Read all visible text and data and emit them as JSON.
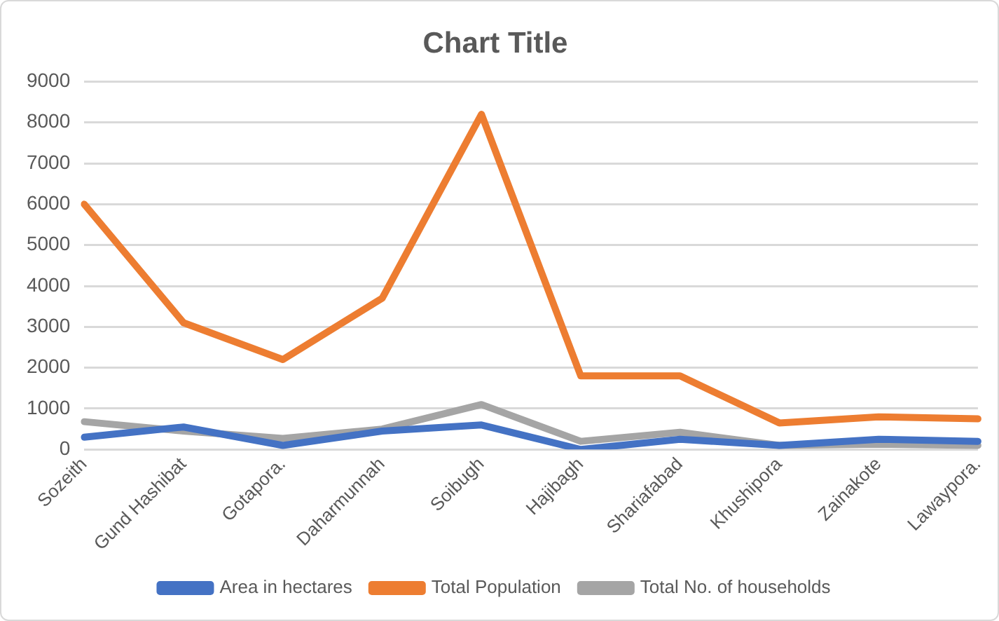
{
  "chart_data": {
    "type": "line",
    "title": "Chart Title",
    "categories": [
      "Sozeith",
      "Gund Hashibat",
      "Gotapora.",
      "Daharmunnah",
      "Soibugh",
      "Hajibagh",
      "Shariafabad",
      "Khushipora",
      "Zainakote",
      "Lawaypora."
    ],
    "series": [
      {
        "name": "Area in hectares",
        "color": "#4472c4",
        "values": [
          300,
          550,
          100,
          450,
          600,
          0,
          250,
          100,
          250,
          200
        ]
      },
      {
        "name": "Total Population",
        "color": "#ed7d31",
        "values": [
          6000,
          3100,
          2200,
          3700,
          8200,
          1800,
          1800,
          650,
          800,
          750
        ]
      },
      {
        "name": "Total No. of households",
        "color": "#a5a5a5",
        "values": [
          680,
          450,
          270,
          500,
          1100,
          200,
          420,
          100,
          130,
          100
        ]
      }
    ],
    "ylim": [
      0,
      9000
    ],
    "yticks": [
      0,
      1000,
      2000,
      3000,
      4000,
      5000,
      6000,
      7000,
      8000,
      9000
    ],
    "grid": "y",
    "legend": "bottom",
    "marker": "none",
    "line_style": "solid"
  }
}
